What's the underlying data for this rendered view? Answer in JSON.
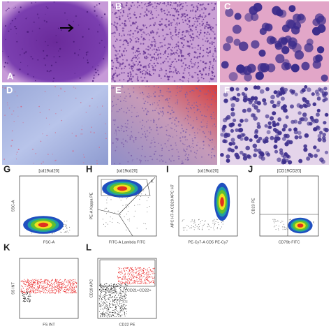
{
  "histology_panels": [
    {
      "label": "A"
    },
    {
      "label": "B"
    },
    {
      "label": "C"
    },
    {
      "label": "D"
    },
    {
      "label": "E"
    },
    {
      "label": "F"
    }
  ],
  "flow_plots": [
    {
      "label": "G",
      "title": "[cd19cd20]",
      "x_label": "FSC-A",
      "y_label": "SSC-A"
    },
    {
      "label": "H",
      "title": "[cd19cd20]",
      "x_label": "FITC-A Lambda FITC",
      "y_label": "PE-A Kappa PE",
      "annotation": "K"
    },
    {
      "label": "I",
      "title": "[cd19cd20]",
      "x_label": "PE-Cy7-A CD5 PE-Cy7",
      "y_label": "APC H7-A CD20 APC H7"
    },
    {
      "label": "J",
      "title": "[CD19CD20]",
      "x_label": "CD79b FITC",
      "y_label": "CD23 PE"
    },
    {
      "label": "K",
      "x_label": "FS INT",
      "y_label": "SS INT"
    },
    {
      "label": "L",
      "x_label": "CD22 PE",
      "y_label": "CD19 APC",
      "annotation": "CD21+CD22+"
    }
  ]
}
